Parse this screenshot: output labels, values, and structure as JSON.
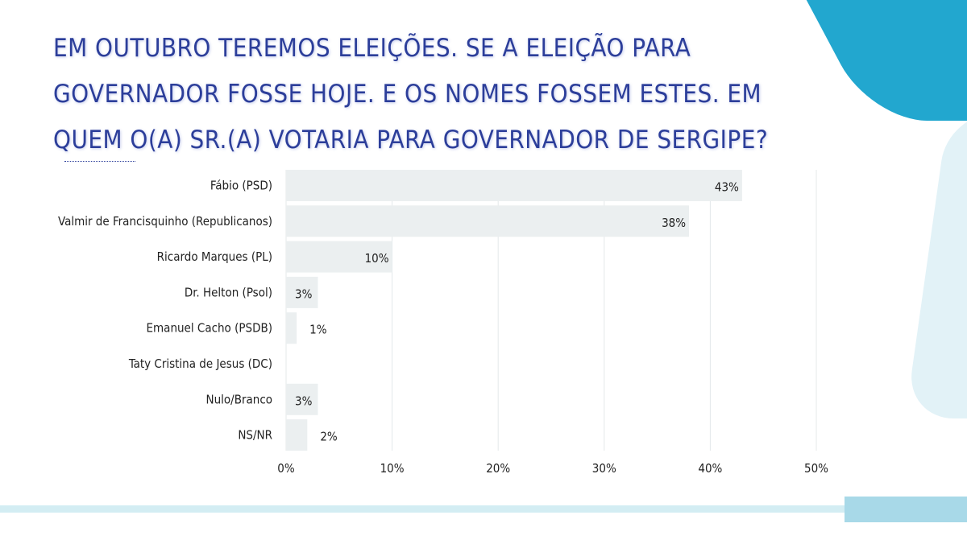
{
  "chart_data": {
    "type": "bar",
    "orientation": "horizontal",
    "title": "Em outubro teremos eleições. Se a eleição para governador fosse hoje. e os nomes fossem estes. em quem o(a) sr.(a) votaria para governador de Sergipe?",
    "categories": [
      "Fábio (PSD)",
      "Valmir de Francisquinho (Republicanos)",
      "Ricardo Marques (PL)",
      "Dr. Helton (Psol)",
      "Emanuel Cacho (PSDB)",
      "Taty Cristina de Jesus (DC)",
      "Nulo/Branco",
      "NS/NR"
    ],
    "values": [
      43,
      38,
      10,
      3,
      1,
      0,
      3,
      2
    ],
    "data_labels": [
      "43%",
      "38%",
      "10%",
      "3%",
      "1%",
      "",
      "3%",
      "2%"
    ],
    "xlim": [
      0,
      50
    ],
    "xticks": [
      0,
      10,
      20,
      30,
      40,
      50
    ],
    "xtick_labels": [
      "0%",
      "10%",
      "20%",
      "30%",
      "40%",
      "50%"
    ],
    "grid": true,
    "bar_color": "#ebeff0",
    "title_color": "#2c3e9a"
  }
}
